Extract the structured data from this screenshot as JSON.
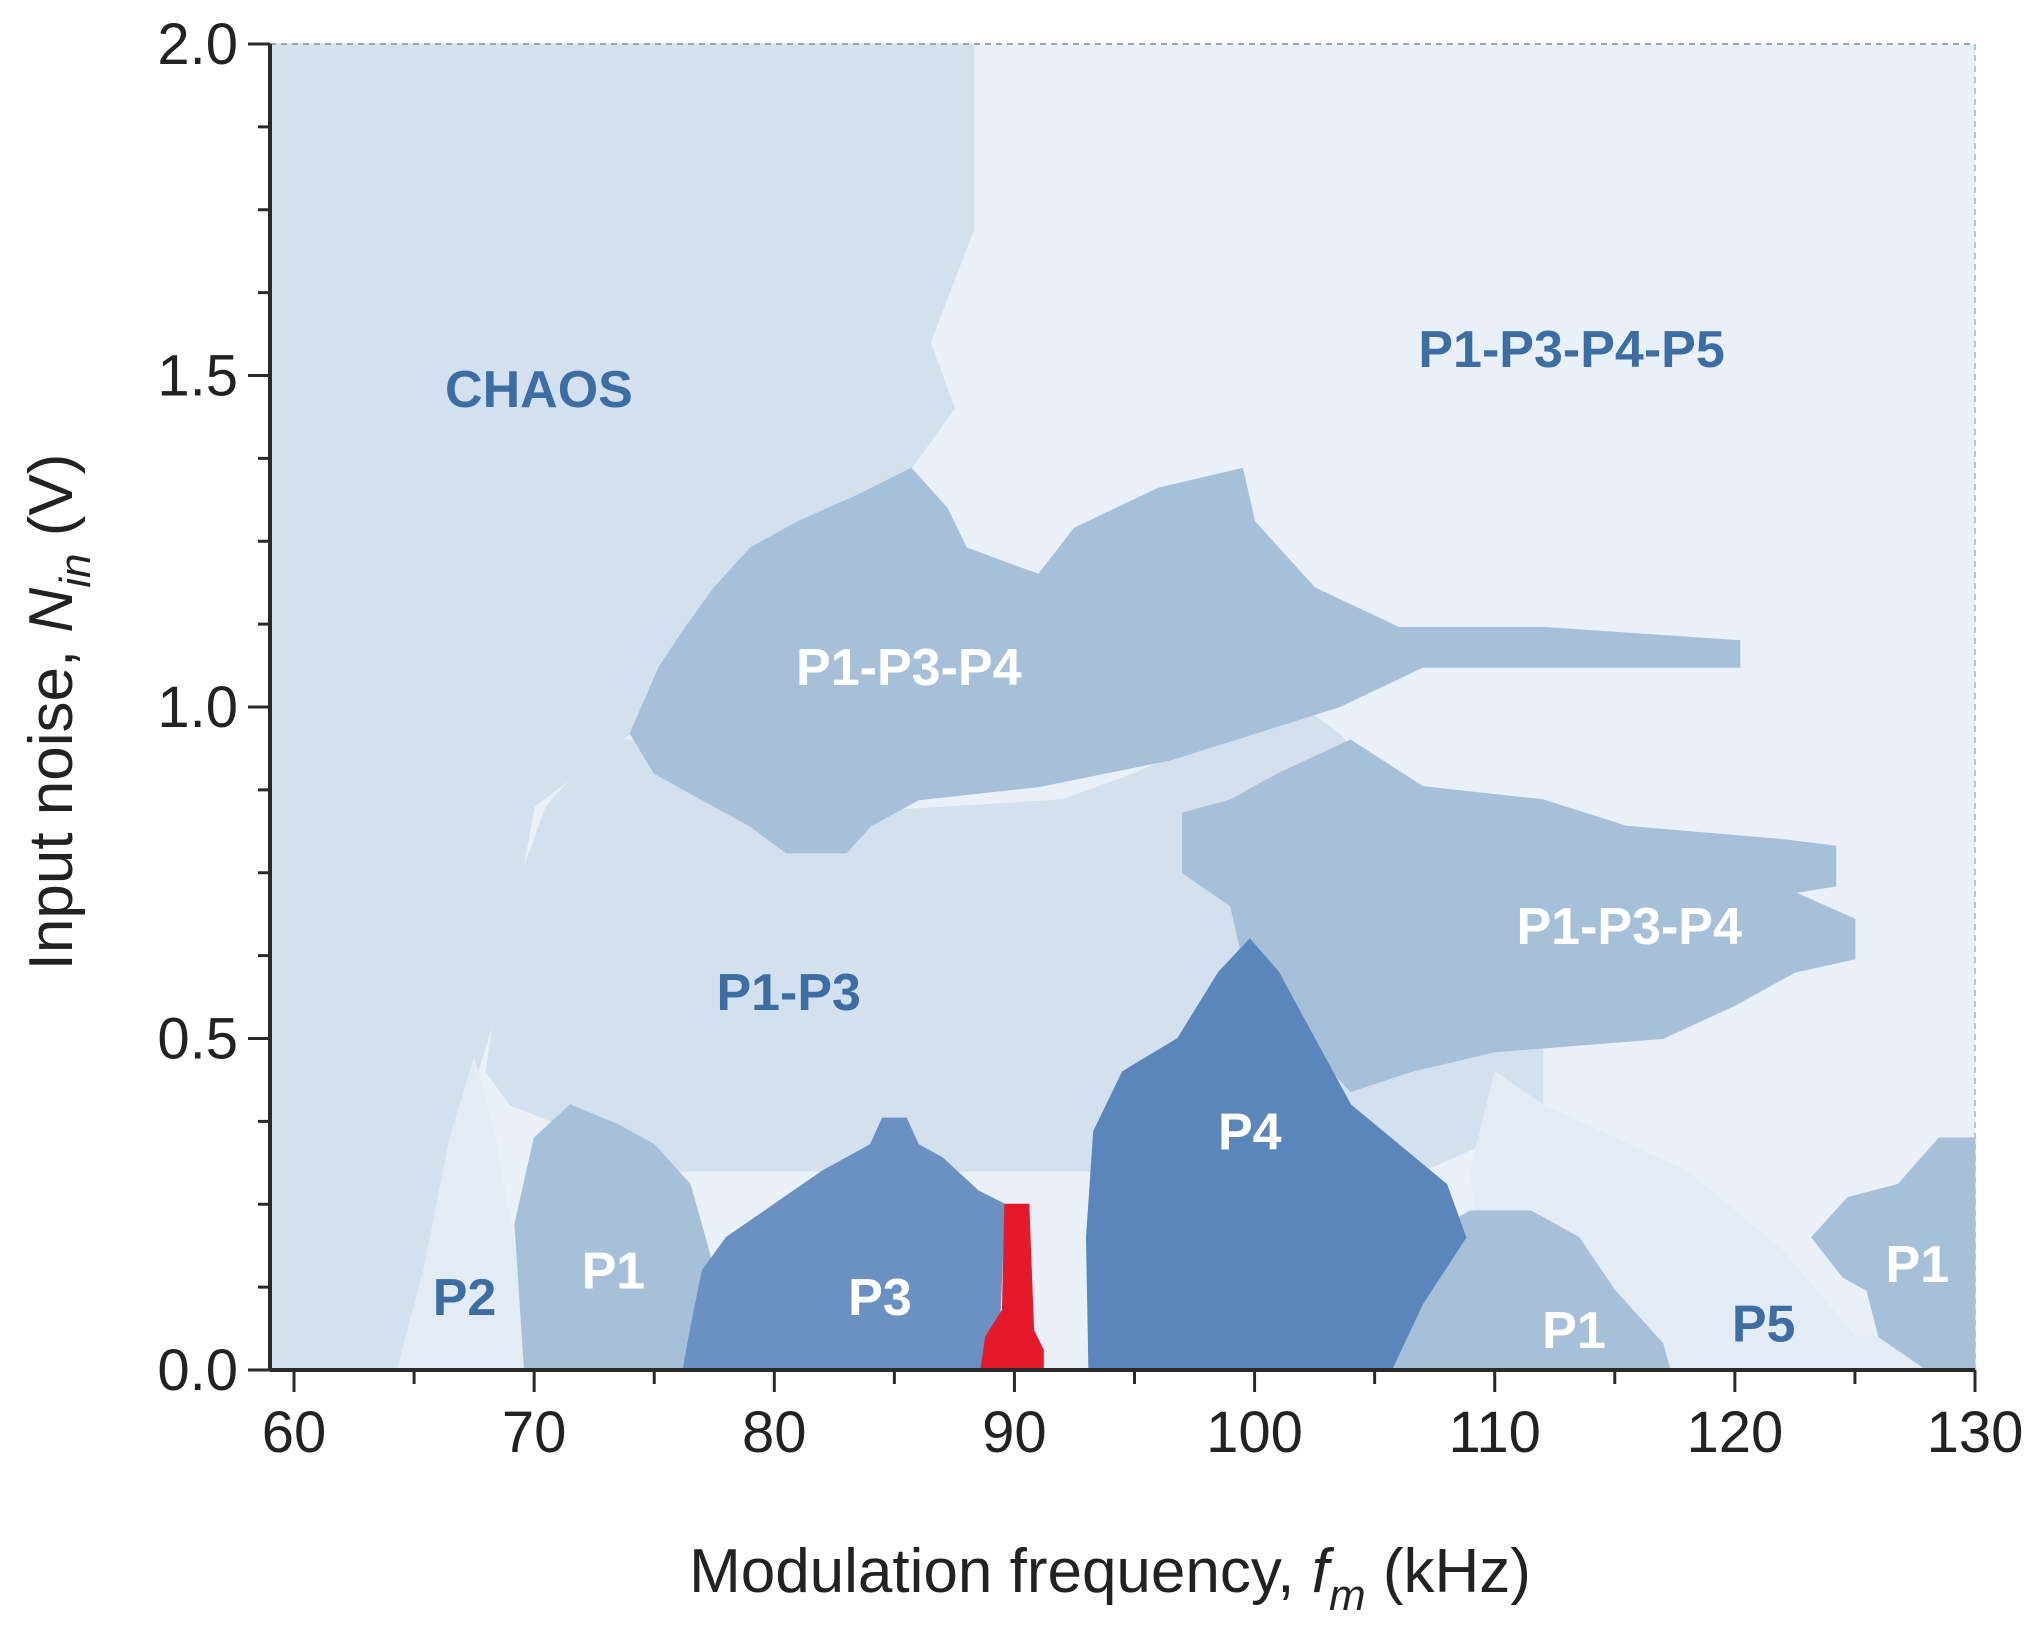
{
  "chart_data": {
    "type": "heatmap",
    "title": "",
    "xlabel": {
      "prefix": "Modulation frequency, ",
      "symbol": "f",
      "subscript": "m",
      "unit": " (kHz)"
    },
    "ylabel": {
      "prefix": "Input noise, ",
      "symbol": "N",
      "subscript": "in",
      "unit": " (V)"
    },
    "xlim": [
      59,
      130
    ],
    "ylim": [
      0,
      2.0
    ],
    "xticks": [
      {
        "value": 60,
        "label": "60"
      },
      {
        "value": 70,
        "label": "70"
      },
      {
        "value": 80,
        "label": "80"
      },
      {
        "value": 90,
        "label": "90"
      },
      {
        "value": 100,
        "label": "100"
      },
      {
        "value": 110,
        "label": "110"
      },
      {
        "value": 120,
        "label": "120"
      },
      {
        "value": 130,
        "label": "130"
      }
    ],
    "yticks": [
      {
        "value": 0.0,
        "label": "0.0"
      },
      {
        "value": 0.5,
        "label": "0.5"
      },
      {
        "value": 1.0,
        "label": "1.0"
      },
      {
        "value": 1.5,
        "label": "1.5"
      },
      {
        "value": 2.0,
        "label": "2.0"
      }
    ],
    "background_color": "#e9f0f7",
    "regions": [
      {
        "name": "CHAOS",
        "color": "#d3e1ee",
        "label_color": "#3c6ea4",
        "label_at": [
          70.2,
          1.48
        ],
        "polygon": [
          [
            59,
            2.0
          ],
          [
            88.3,
            2.0
          ],
          [
            88.3,
            1.88
          ],
          [
            88.3,
            1.72
          ],
          [
            86.5,
            1.55
          ],
          [
            87.5,
            1.45
          ],
          [
            85.5,
            1.35
          ],
          [
            83,
            1.25
          ],
          [
            76,
            1.05
          ],
          [
            74,
            0.96
          ],
          [
            70,
            0.85
          ],
          [
            68.5,
            0.55
          ],
          [
            67.5,
            0.43
          ],
          [
            66,
            0.25
          ],
          [
            64.5,
            0.0
          ],
          [
            59,
            0.0
          ]
        ]
      },
      {
        "name": "P1-P3 (upper region)",
        "color": "#d3e1ee",
        "label_color": "#3c6ea4",
        "label_at": [
          80.6,
          0.57
        ],
        "polygon": [
          [
            68,
            0.45
          ],
          [
            69,
            0.7
          ],
          [
            70.5,
            0.85
          ],
          [
            73,
            0.95
          ],
          [
            75,
            0.95
          ],
          [
            78,
            0.92
          ],
          [
            83,
            0.84
          ],
          [
            92,
            0.86
          ],
          [
            95,
            0.9
          ],
          [
            100,
            0.98
          ],
          [
            102,
            1.0
          ],
          [
            103.5,
            0.96
          ],
          [
            110,
            0.7
          ],
          [
            112,
            0.55
          ],
          [
            112,
            0.38
          ],
          [
            107,
            0.3
          ],
          [
            93,
            0.3
          ],
          [
            91,
            0.3
          ],
          [
            76,
            0.3
          ],
          [
            69,
            0.4
          ]
        ]
      },
      {
        "name": "P2",
        "color": "#e3ebf4",
        "label_color": "#3c6ea4",
        "label_at": [
          67.1,
          0.11
        ],
        "polygon": [
          [
            64.3,
            0.0
          ],
          [
            69.6,
            0.0
          ],
          [
            69.2,
            0.18
          ],
          [
            68.4,
            0.35
          ],
          [
            67.5,
            0.47
          ],
          [
            66.5,
            0.35
          ],
          [
            65.4,
            0.15
          ]
        ]
      },
      {
        "name": "P5 (lower right)",
        "color": "#e3ebf4",
        "label_color": "#3c6ea4",
        "label_at": [
          121.2,
          0.07
        ],
        "polygon": [
          [
            110,
            0.0
          ],
          [
            130,
            0.0
          ],
          [
            130,
            0.05
          ],
          [
            125,
            0.05
          ],
          [
            122,
            0.18
          ],
          [
            118,
            0.3
          ],
          [
            112,
            0.4
          ],
          [
            110,
            0.45
          ],
          [
            109,
            0.3
          ]
        ]
      },
      {
        "name": "P1-P3-P4 (upper)",
        "color": "#a7c0da",
        "label_color": "#ffffff",
        "label_at": [
          85.6,
          1.06
        ],
        "polygon": [
          [
            74,
            0.96
          ],
          [
            75.2,
            1.06
          ],
          [
            76.3,
            1.12
          ],
          [
            77.5,
            1.18
          ],
          [
            79,
            1.24
          ],
          [
            81,
            1.28
          ],
          [
            83.5,
            1.32
          ],
          [
            85.7,
            1.36
          ],
          [
            87.2,
            1.3
          ],
          [
            88,
            1.24
          ],
          [
            91,
            1.2
          ],
          [
            92.5,
            1.27
          ],
          [
            96,
            1.33
          ],
          [
            99.5,
            1.36
          ],
          [
            100,
            1.28
          ],
          [
            102.5,
            1.18
          ],
          [
            106,
            1.12
          ],
          [
            112,
            1.12
          ],
          [
            120.2,
            1.1
          ],
          [
            120.2,
            1.06
          ],
          [
            107,
            1.06
          ],
          [
            103.5,
            1.0
          ],
          [
            96.5,
            0.92
          ],
          [
            91,
            0.88
          ],
          [
            86,
            0.86
          ],
          [
            84,
            0.82
          ],
          [
            83,
            0.78
          ],
          [
            80.5,
            0.78
          ],
          [
            79,
            0.82
          ],
          [
            76,
            0.88
          ],
          [
            75,
            0.9
          ]
        ]
      },
      {
        "name": "P1-P3-P4 (lower)",
        "color": "#a7c0da",
        "label_color": "#ffffff",
        "label_at": [
          115.6,
          0.67
        ],
        "polygon": [
          [
            97,
            0.84
          ],
          [
            99,
            0.86
          ],
          [
            101,
            0.9
          ],
          [
            104,
            0.95
          ],
          [
            107,
            0.88
          ],
          [
            112,
            0.86
          ],
          [
            115.5,
            0.82
          ],
          [
            122,
            0.8
          ],
          [
            124.2,
            0.79
          ],
          [
            124.2,
            0.73
          ],
          [
            122.5,
            0.72
          ],
          [
            125,
            0.68
          ],
          [
            125,
            0.62
          ],
          [
            122.5,
            0.6
          ],
          [
            120,
            0.55
          ],
          [
            117,
            0.5
          ],
          [
            110,
            0.48
          ],
          [
            106.5,
            0.45
          ],
          [
            104,
            0.42
          ],
          [
            102,
            0.5
          ],
          [
            99.5,
            0.62
          ],
          [
            99,
            0.7
          ],
          [
            97,
            0.75
          ]
        ]
      },
      {
        "name": "P1 (left)",
        "color": "#a7c0da",
        "label_color": "#ffffff",
        "label_at": [
          73.3,
          0.15
        ],
        "polygon": [
          [
            69.6,
            0.0
          ],
          [
            76.2,
            0.0
          ],
          [
            77.5,
            0.15
          ],
          [
            76.5,
            0.28
          ],
          [
            75,
            0.34
          ],
          [
            73.5,
            0.37
          ],
          [
            71.5,
            0.4
          ],
          [
            70,
            0.35
          ],
          [
            69.2,
            0.22
          ]
        ]
      },
      {
        "name": "P1 (middle-right)",
        "color": "#a7c0da",
        "label_color": "#ffffff",
        "label_at": [
          113.3,
          0.06
        ],
        "polygon": [
          [
            105.8,
            0.0
          ],
          [
            117.3,
            0.0
          ],
          [
            117,
            0.04
          ],
          [
            115,
            0.12
          ],
          [
            113.5,
            0.2
          ],
          [
            111.5,
            0.24
          ],
          [
            109,
            0.24
          ],
          [
            107,
            0.2
          ],
          [
            106,
            0.1
          ]
        ]
      },
      {
        "name": "P1 (right)",
        "color": "#a7c0da",
        "label_color": "#ffffff",
        "label_at": [
          127.6,
          0.16
        ],
        "polygon": [
          [
            130,
            0.0
          ],
          [
            130,
            0.35
          ],
          [
            128.5,
            0.35
          ],
          [
            126.8,
            0.28
          ],
          [
            124.7,
            0.26
          ],
          [
            123.2,
            0.2
          ],
          [
            124.5,
            0.14
          ],
          [
            125.5,
            0.12
          ],
          [
            126,
            0.05
          ],
          [
            128,
            0.0
          ]
        ]
      },
      {
        "name": "P3",
        "color": "#6a91c1",
        "label_color": "#ffffff",
        "label_at": [
          84.4,
          0.11
        ],
        "polygon": [
          [
            76.2,
            0.0
          ],
          [
            89.3,
            0.0
          ],
          [
            89.6,
            0.25
          ],
          [
            88.5,
            0.27
          ],
          [
            87,
            0.32
          ],
          [
            86,
            0.34
          ],
          [
            85.5,
            0.38
          ],
          [
            84.5,
            0.38
          ],
          [
            84,
            0.34
          ],
          [
            82,
            0.3
          ],
          [
            80,
            0.25
          ],
          [
            78,
            0.2
          ],
          [
            77,
            0.15
          ],
          [
            76.5,
            0.06
          ]
        ]
      },
      {
        "name": "P4",
        "color": "#5b86bb",
        "label_color": "#ffffff",
        "label_at": [
          99.8,
          0.36
        ],
        "polygon": [
          [
            93.1,
            0.0
          ],
          [
            105.7,
            0.0
          ],
          [
            107,
            0.1
          ],
          [
            108.8,
            0.2
          ],
          [
            108,
            0.28
          ],
          [
            106,
            0.34
          ],
          [
            104,
            0.4
          ],
          [
            102.5,
            0.5
          ],
          [
            101,
            0.6
          ],
          [
            99.8,
            0.65
          ],
          [
            98.5,
            0.6
          ],
          [
            96.8,
            0.5
          ],
          [
            94.5,
            0.45
          ],
          [
            93.3,
            0.36
          ],
          [
            93,
            0.2
          ]
        ]
      },
      {
        "name": "highlight",
        "color": "#e6192b",
        "label_color": "#ffffff",
        "label_at": null,
        "polygon": [
          [
            88.6,
            0.0
          ],
          [
            91.2,
            0.0
          ],
          [
            91.2,
            0.03
          ],
          [
            90.8,
            0.06
          ],
          [
            90.6,
            0.25
          ],
          [
            89.6,
            0.25
          ],
          [
            89.5,
            0.09
          ],
          [
            88.8,
            0.05
          ]
        ]
      }
    ],
    "labels": [
      {
        "text": "CHAOS",
        "x": 70.2,
        "y": 1.48,
        "color": "#3c6ea4"
      },
      {
        "text": "P1-P3-P4-P5",
        "x": 113.2,
        "y": 1.54,
        "color": "#3c6ea4"
      },
      {
        "text": "P1-P3-P4",
        "x": 85.6,
        "y": 1.06,
        "color": "#ffffff"
      },
      {
        "text": "P1-P3-P4",
        "x": 115.6,
        "y": 0.67,
        "color": "#ffffff"
      },
      {
        "text": "P1-P3",
        "x": 80.6,
        "y": 0.57,
        "color": "#3c6ea4"
      },
      {
        "text": "P4",
        "x": 99.8,
        "y": 0.36,
        "color": "#ffffff"
      },
      {
        "text": "P3",
        "x": 84.4,
        "y": 0.11,
        "color": "#ffffff"
      },
      {
        "text": "P1",
        "x": 73.3,
        "y": 0.15,
        "color": "#ffffff"
      },
      {
        "text": "P2",
        "x": 67.1,
        "y": 0.11,
        "color": "#3c6ea4"
      },
      {
        "text": "P1",
        "x": 113.3,
        "y": 0.06,
        "color": "#ffffff"
      },
      {
        "text": "P5",
        "x": 121.2,
        "y": 0.07,
        "color": "#3c6ea4"
      },
      {
        "text": "P1",
        "x": 127.6,
        "y": 0.16,
        "color": "#ffffff"
      }
    ]
  }
}
